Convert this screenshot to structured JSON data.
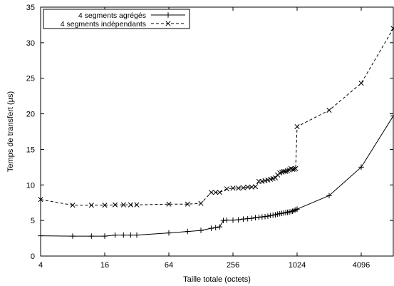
{
  "chart_data": {
    "type": "line",
    "title": "",
    "xlabel": "Taille totale (octets)",
    "ylabel": "Temps de transfert (µs)",
    "xscale": "log2",
    "xlim": [
      4,
      8192
    ],
    "ylim": [
      0,
      35
    ],
    "xticks": [
      4,
      16,
      64,
      256,
      1024,
      4096
    ],
    "xtick_labels": [
      "4",
      "16",
      "64",
      "256",
      "1024",
      "4096"
    ],
    "yticks": [
      0,
      5,
      10,
      15,
      20,
      25,
      30,
      35
    ],
    "ytick_labels": [
      "0",
      "5",
      "10",
      "15",
      "20",
      "25",
      "30",
      "35"
    ],
    "grid": false,
    "legend_position": "top-left",
    "series": [
      {
        "name": "4 segments agrégés",
        "style": "solid",
        "marker": "+",
        "color": "#000000",
        "x": [
          4,
          8,
          12,
          16,
          20,
          24,
          28,
          32,
          64,
          96,
          128,
          160,
          176,
          192,
          208,
          224,
          256,
          288,
          320,
          352,
          384,
          416,
          448,
          480,
          512,
          544,
          576,
          608,
          640,
          672,
          704,
          736,
          768,
          800,
          832,
          864,
          896,
          928,
          960,
          992,
          1024,
          2048,
          4096,
          8192
        ],
        "y": [
          2.85,
          2.8,
          2.8,
          2.8,
          2.95,
          2.95,
          2.95,
          2.95,
          3.25,
          3.45,
          3.6,
          3.9,
          4.0,
          4.1,
          5.0,
          5.05,
          5.05,
          5.1,
          5.2,
          5.25,
          5.3,
          5.4,
          5.45,
          5.5,
          5.55,
          5.6,
          5.7,
          5.75,
          5.8,
          5.9,
          5.95,
          6.0,
          6.05,
          6.1,
          6.15,
          6.2,
          6.25,
          6.3,
          6.4,
          6.5,
          6.6,
          8.5,
          12.5,
          19.7
        ]
      },
      {
        "name": "4 segments indépendants",
        "style": "dashed",
        "marker": "x",
        "color": "#000000",
        "x": [
          4,
          8,
          12,
          16,
          20,
          24,
          28,
          32,
          64,
          96,
          128,
          160,
          176,
          192,
          224,
          256,
          288,
          320,
          352,
          384,
          416,
          448,
          480,
          512,
          544,
          576,
          608,
          640,
          672,
          704,
          736,
          768,
          800,
          832,
          864,
          896,
          928,
          960,
          992,
          1024,
          2048,
          4096,
          8192
        ],
        "y": [
          7.95,
          7.15,
          7.15,
          7.15,
          7.2,
          7.2,
          7.2,
          7.2,
          7.3,
          7.3,
          7.4,
          8.95,
          8.95,
          8.95,
          9.45,
          9.55,
          9.55,
          9.6,
          9.7,
          9.7,
          9.75,
          10.5,
          10.5,
          10.6,
          10.7,
          10.8,
          10.9,
          11.0,
          11.4,
          11.7,
          11.8,
          11.9,
          11.9,
          12.0,
          12.1,
          12.3,
          12.2,
          12.2,
          12.3,
          18.2,
          20.5,
          24.3,
          32.0
        ]
      }
    ]
  }
}
